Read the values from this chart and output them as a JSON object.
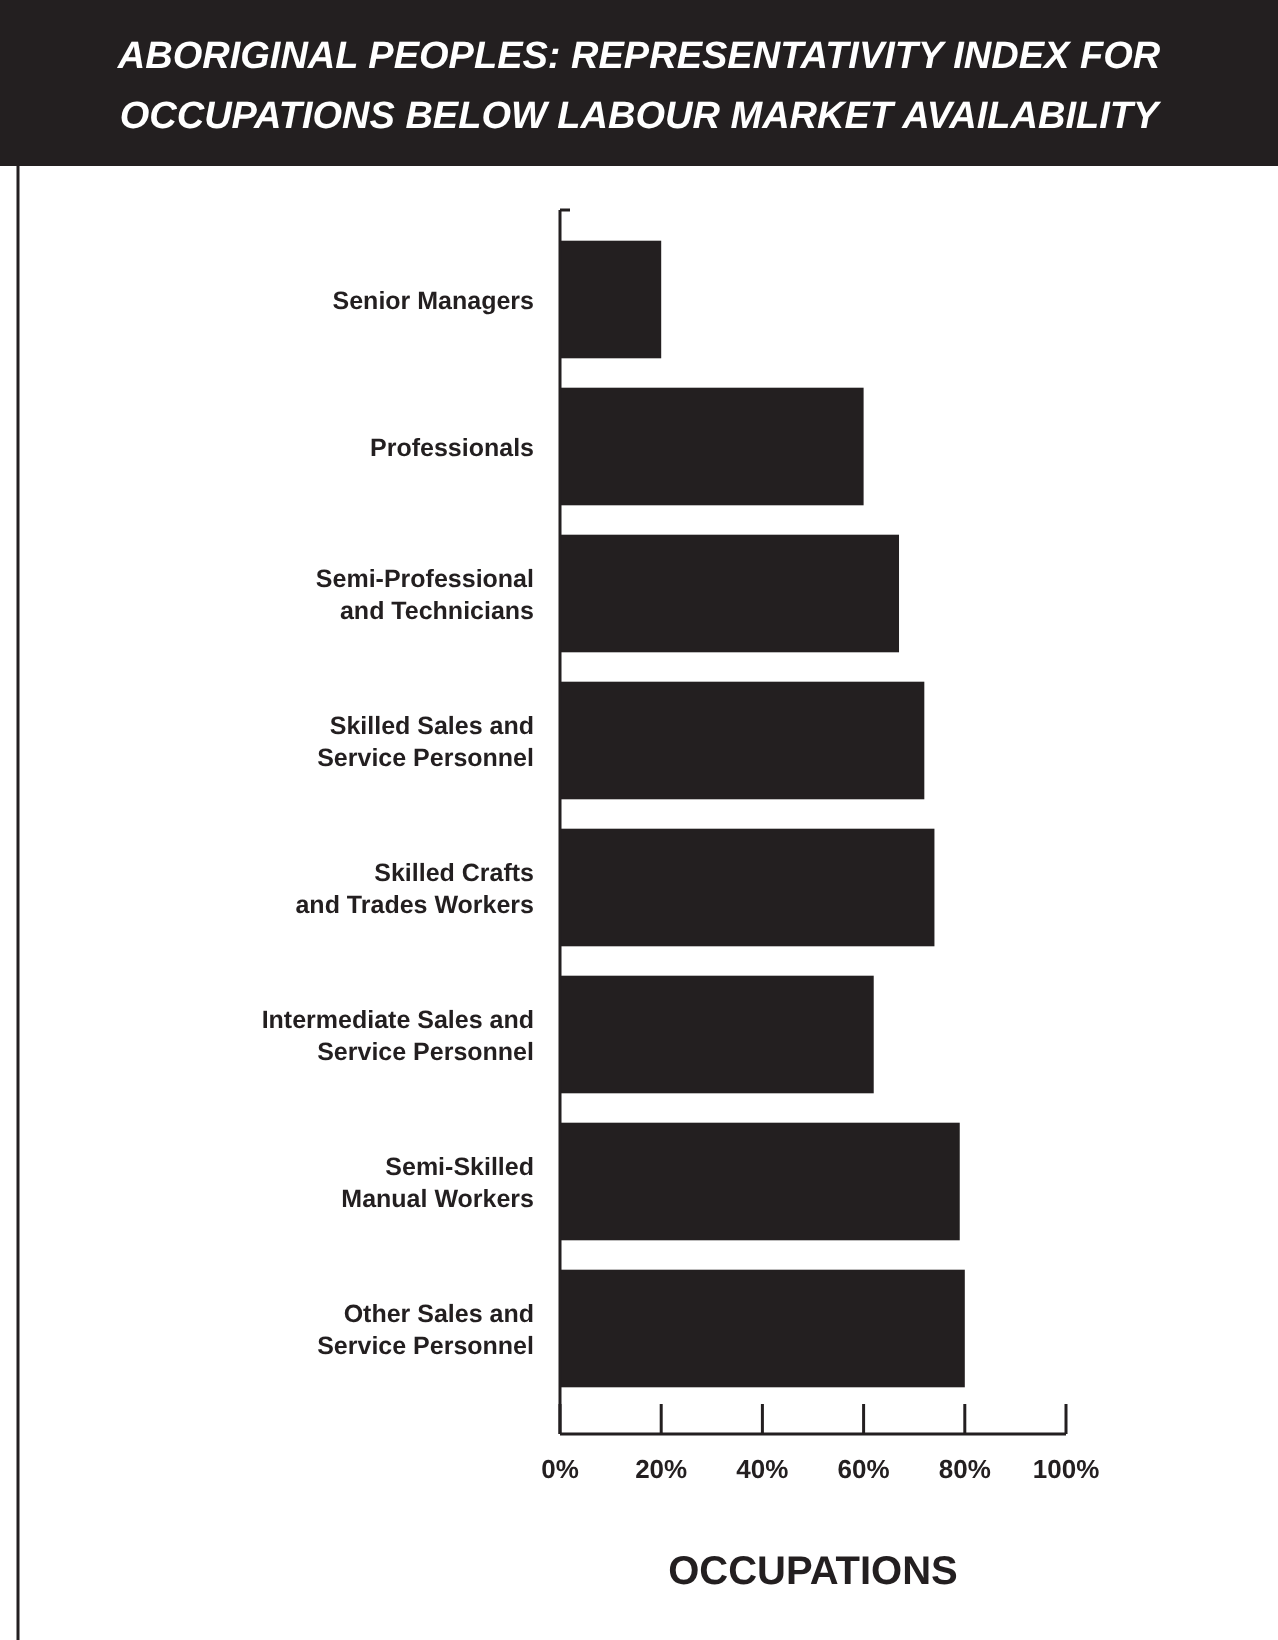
{
  "chart_data": {
    "type": "bar",
    "orientation": "horizontal",
    "title": "ABORIGINAL PEOPLES: REPRESENTATIVITY INDEX FOR OCCUPATIONS BELOW LABOUR MARKET AVAILABILITY",
    "xlabel": "OCCUPATIONS",
    "categories": [
      "Senior Managers",
      "Professionals",
      "Semi-Professional\nand Technicians",
      "Skilled Sales and\nService Personnel",
      "Skilled Crafts\nand Trades Workers",
      "Intermediate Sales and\nService Personnel",
      "Semi-Skilled\nManual Workers",
      "Other Sales and\nService Personnel"
    ],
    "values": [
      20,
      60,
      67,
      72,
      74,
      62,
      79,
      80
    ],
    "color": "#231f20",
    "xlim": [
      0,
      100
    ],
    "xticks": [
      {
        "value": 0,
        "label": "0%"
      },
      {
        "value": 20,
        "label": "20%"
      },
      {
        "value": 40,
        "label": "40%"
      },
      {
        "value": 60,
        "label": "60%"
      },
      {
        "value": 80,
        "label": "80%"
      },
      {
        "value": 100,
        "label": "100%"
      }
    ],
    "grid": false
  }
}
